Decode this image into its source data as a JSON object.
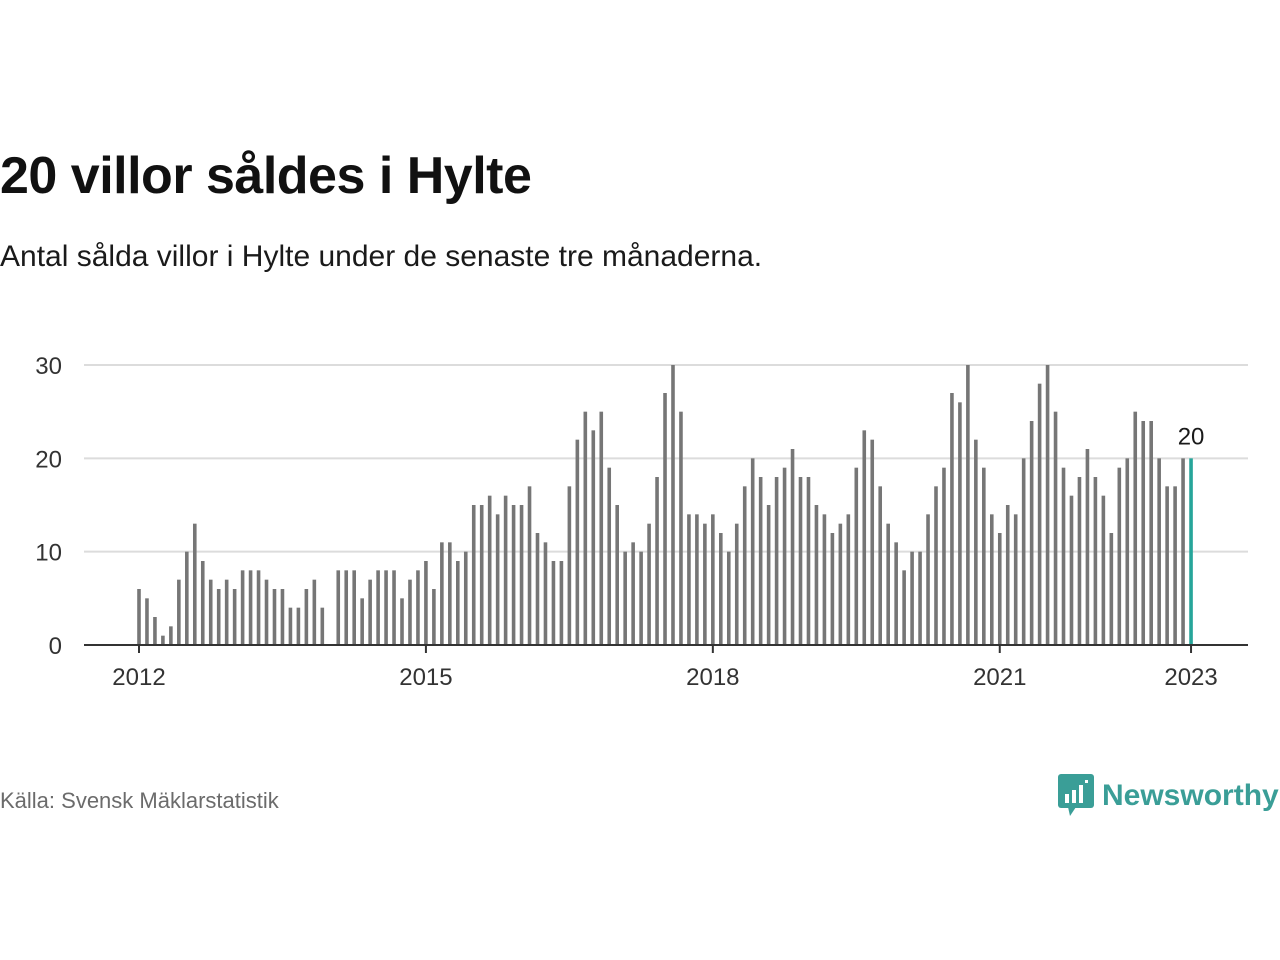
{
  "title": "20 villor såldes i Hylte",
  "subtitle": "Antal sålda villor i Hylte under de senaste tre månaderna.",
  "source": "Källa: Svensk Mäklarstatistik",
  "brand": "Newsworthy",
  "colors": {
    "bar": "#767676",
    "highlight": "#26a59a",
    "grid": "#dcdcdc",
    "axis": "#333333",
    "brand": "#3a9e97"
  },
  "chart_data": {
    "type": "bar",
    "x_unit": "month",
    "start": "2012-01",
    "end": "2023-01",
    "ylim": [
      0,
      30
    ],
    "y_ticks": [
      0,
      10,
      20,
      30
    ],
    "x_ticks": [
      "2012",
      "2015",
      "2018",
      "2021",
      "2023"
    ],
    "grid": true,
    "highlight_label": "20",
    "values": [
      6,
      5,
      3,
      1,
      2,
      7,
      10,
      13,
      9,
      7,
      6,
      7,
      6,
      8,
      8,
      8,
      7,
      6,
      6,
      4,
      4,
      6,
      7,
      4,
      null,
      8,
      8,
      8,
      5,
      7,
      8,
      8,
      8,
      5,
      7,
      8,
      9,
      6,
      11,
      11,
      9,
      10,
      15,
      15,
      16,
      14,
      16,
      15,
      15,
      17,
      12,
      11,
      9,
      9,
      17,
      22,
      25,
      23,
      25,
      19,
      15,
      10,
      11,
      10,
      13,
      18,
      27,
      30,
      25,
      14,
      14,
      13,
      14,
      12,
      10,
      13,
      17,
      20,
      18,
      15,
      18,
      19,
      21,
      18,
      18,
      15,
      14,
      12,
      13,
      14,
      19,
      23,
      22,
      17,
      13,
      11,
      8,
      10,
      10,
      14,
      17,
      19,
      27,
      26,
      30,
      22,
      19,
      14,
      12,
      15,
      14,
      20,
      24,
      28,
      30,
      25,
      19,
      16,
      18,
      21,
      18,
      16,
      12,
      19,
      20,
      25,
      24,
      24,
      20,
      17,
      17,
      20,
      20
    ]
  }
}
